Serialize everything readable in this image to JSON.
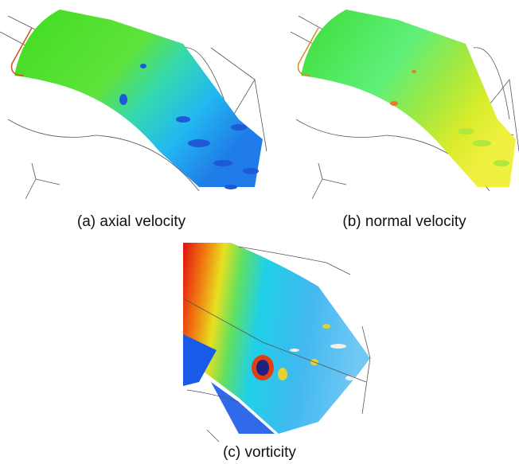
{
  "figure": {
    "panels": [
      {
        "caption": "(a) axial velocity"
      },
      {
        "caption": "(b) normal velocity"
      },
      {
        "caption": "(c) vorticity"
      }
    ]
  }
}
